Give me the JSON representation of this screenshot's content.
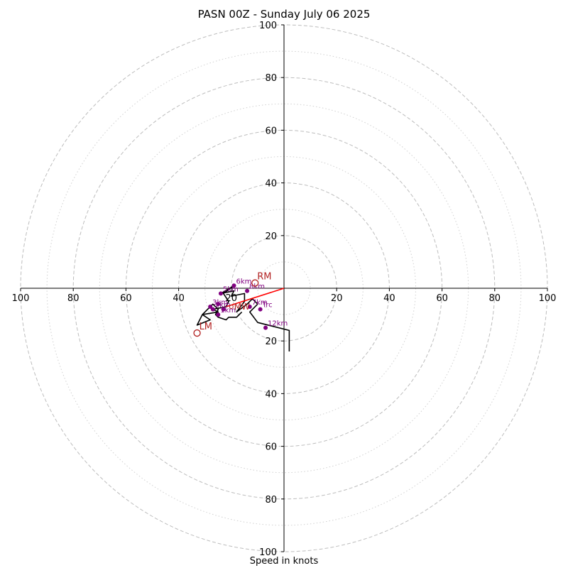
{
  "chart_data": {
    "type": "scatter",
    "title": "PASN 00Z - Sunday July 06 2025",
    "xlabel": "Speed in knots",
    "ylabel": "",
    "xlim": [
      -100,
      100
    ],
    "ylim": [
      -100,
      100
    ],
    "dashed_rings": [
      20,
      40,
      60,
      80,
      100
    ],
    "dotted_rings": [
      10,
      30,
      50,
      70,
      90
    ],
    "ticks": [
      -100,
      -80,
      -60,
      -40,
      -20,
      20,
      40,
      60,
      80,
      100
    ],
    "tick_labels": [
      "100",
      "80",
      "60",
      "40",
      "20",
      "20",
      "40",
      "60",
      "80",
      "100"
    ],
    "colors": {
      "hodograph": "#000000",
      "points": "#800080",
      "motion": "#b22222",
      "shear_vector": "#ff0000",
      "rings": "#bdbdbd"
    },
    "hodograph": [
      {
        "u": 2,
        "v": -24
      },
      {
        "u": 2,
        "v": -16
      },
      {
        "u": -10,
        "v": -13
      },
      {
        "u": -13,
        "v": -9
      },
      {
        "u": -10,
        "v": -6
      },
      {
        "u": -12,
        "v": -4
      },
      {
        "u": -14,
        "v": -6
      },
      {
        "u": -18,
        "v": -9
      },
      {
        "u": -15,
        "v": -5
      },
      {
        "u": -15,
        "v": -2
      },
      {
        "u": -20,
        "v": -3
      },
      {
        "u": -19,
        "v": -1
      },
      {
        "u": -24,
        "v": -2
      },
      {
        "u": -19,
        "v": 1
      },
      {
        "u": -23,
        "v": -2
      },
      {
        "u": -21,
        "v": -5
      },
      {
        "u": -22,
        "v": -7
      },
      {
        "u": -27,
        "v": -8
      },
      {
        "u": -25,
        "v": -9
      },
      {
        "u": -31,
        "v": -10
      },
      {
        "u": -28,
        "v": -12
      },
      {
        "u": -33,
        "v": -14
      },
      {
        "u": -31,
        "v": -10
      },
      {
        "u": -27,
        "v": -6
      },
      {
        "u": -25,
        "v": -8
      },
      {
        "u": -26,
        "v": -10
      },
      {
        "u": -25,
        "v": -11
      },
      {
        "u": -22,
        "v": -12
      },
      {
        "u": -21,
        "v": -11
      },
      {
        "u": -18,
        "v": -11
      },
      {
        "u": -16,
        "v": -9
      }
    ],
    "points": [
      {
        "label": "12km",
        "u": -7,
        "v": -15
      },
      {
        "label": "Trc",
        "u": -9,
        "v": -8
      },
      {
        "label": "7km",
        "u": -13,
        "v": -7
      },
      {
        "label": "8km",
        "u": -14,
        "v": -1
      },
      {
        "label": "6km",
        "u": -19,
        "v": 1
      },
      {
        "label": "5km",
        "u": -24,
        "v": -2
      },
      {
        "label": "3km",
        "u": -28,
        "v": -7
      },
      {
        "label": "2km",
        "u": -27,
        "v": -8
      },
      {
        "label": "1km",
        "u": -25,
        "v": -10
      },
      {
        "label": "",
        "u": -23,
        "v": -8
      },
      {
        "label": "",
        "u": -25,
        "v": -6
      }
    ],
    "storm_motion": [
      {
        "label": "RM",
        "u": -11,
        "v": 2
      },
      {
        "label": "LM",
        "u": -33,
        "v": -17
      }
    ],
    "mean_wind": {
      "label": "MW",
      "u": -20,
      "v": -7
    },
    "shear_vector": {
      "u": -22,
      "v": -7
    }
  }
}
